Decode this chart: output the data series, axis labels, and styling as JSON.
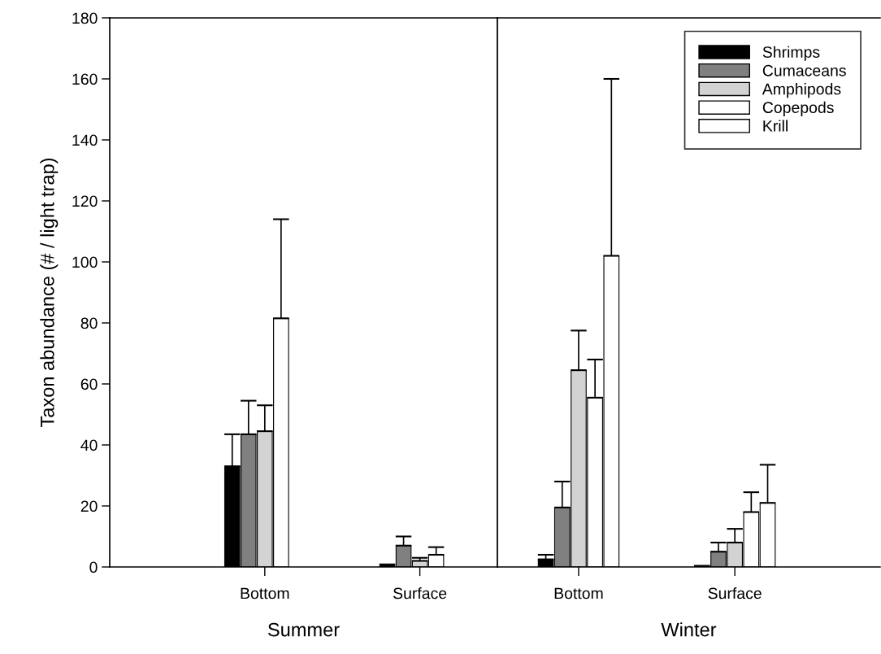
{
  "chart_data": [
    {
      "type": "bar",
      "xlabel": "Summer",
      "ylabel": "Taxon abundance (# / light trap)",
      "categories": [
        "Bottom",
        "Surface"
      ],
      "ylim": [
        0,
        180
      ],
      "yticks": [
        0,
        20,
        40,
        60,
        80,
        100,
        120,
        140,
        160,
        180
      ],
      "legend": false,
      "grid": false,
      "series": [
        {
          "color": "#000000",
          "values": [
            33,
            1
          ],
          "errors": [
            [
              33,
              43.5
            ],
            null
          ]
        },
        {
          "color": "#808080",
          "values": [
            43.5,
            7
          ],
          "errors": [
            [
              43.5,
              54.5
            ],
            [
              7,
              10
            ]
          ]
        },
        {
          "color": "#d3d3d3",
          "values": [
            44.5,
            2
          ],
          "errors": [
            [
              44.5,
              53
            ],
            [
              2,
              3
            ]
          ]
        },
        {
          "color": "#ffffff",
          "values": [
            81.5,
            4
          ],
          "errors": [
            [
              81.5,
              114
            ],
            [
              4,
              6.5
            ]
          ]
        }
      ]
    },
    {
      "type": "bar",
      "xlabel": "Winter",
      "categories": [
        "Bottom",
        "Surface"
      ],
      "ylim": [
        0,
        180
      ],
      "tick_labels": "x",
      "legend": "top right",
      "grid": false,
      "series": [
        {
          "name": "Shrimps",
          "color": "#000000",
          "values": [
            2.5,
            0.5
          ],
          "errors": [
            [
              2.5,
              4
            ],
            null
          ]
        },
        {
          "name": "Cumaceans",
          "color": "#808080",
          "values": [
            19.5,
            5
          ],
          "errors": [
            [
              19.5,
              28
            ],
            [
              5,
              8
            ]
          ]
        },
        {
          "name": "Amphipods",
          "color": "#d3d3d3",
          "values": [
            64.5,
            8
          ],
          "errors": [
            [
              64.5,
              77.5
            ],
            [
              8,
              12.5
            ]
          ]
        },
        {
          "name": "Copepods",
          "color": "#ffffff",
          "values": [
            55.5,
            18
          ],
          "errors": [
            [
              55.5,
              68
            ],
            [
              18,
              24.5
            ]
          ]
        },
        {
          "name": "Krill",
          "color": "#ffffff",
          "values": [
            102,
            21
          ],
          "errors": [
            [
              102,
              160
            ],
            [
              21,
              33.5
            ]
          ]
        }
      ]
    }
  ]
}
